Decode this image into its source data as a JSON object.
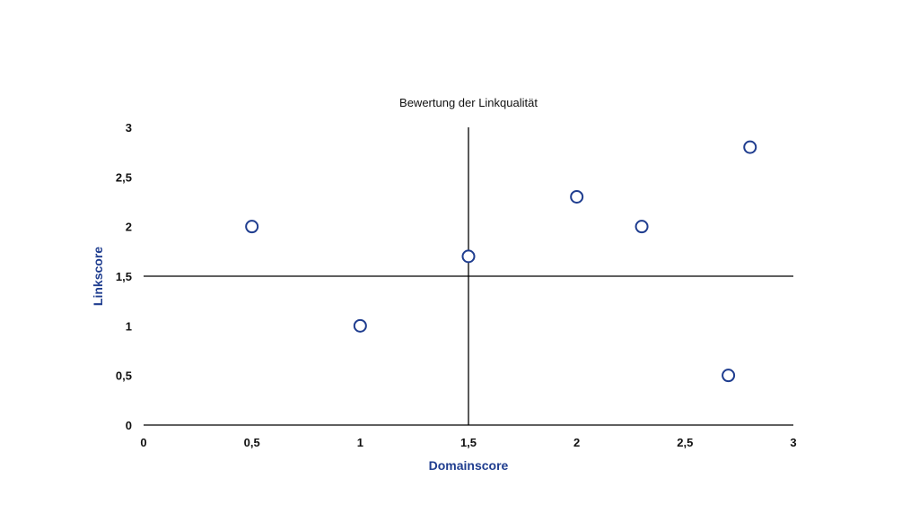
{
  "chart_data": {
    "type": "scatter",
    "title": "Bewertung der Linkqualität",
    "xlabel": "Domainscore",
    "ylabel": "Linkscore",
    "xlim": [
      0,
      3
    ],
    "ylim": [
      0,
      3
    ],
    "x_ticks": [
      "0",
      "0,5",
      "1",
      "1,5",
      "2",
      "2,5",
      "3"
    ],
    "y_ticks": [
      "0",
      "0,5",
      "1",
      "1,5",
      "2",
      "2,5",
      "3"
    ],
    "grid": false,
    "reference_lines": {
      "x": 1.5,
      "y": 1.5
    },
    "points": [
      {
        "x": 0.5,
        "y": 2.0
      },
      {
        "x": 1.0,
        "y": 1.0
      },
      {
        "x": 1.5,
        "y": 1.7
      },
      {
        "x": 2.0,
        "y": 2.3
      },
      {
        "x": 2.3,
        "y": 2.0
      },
      {
        "x": 2.7,
        "y": 0.5
      },
      {
        "x": 2.8,
        "y": 2.8
      }
    ],
    "colors": {
      "marker_stroke": "#1f3d8f",
      "marker_fill": "#ffffff",
      "axis_label": "#1f3d8f",
      "axis": "#000000"
    }
  }
}
